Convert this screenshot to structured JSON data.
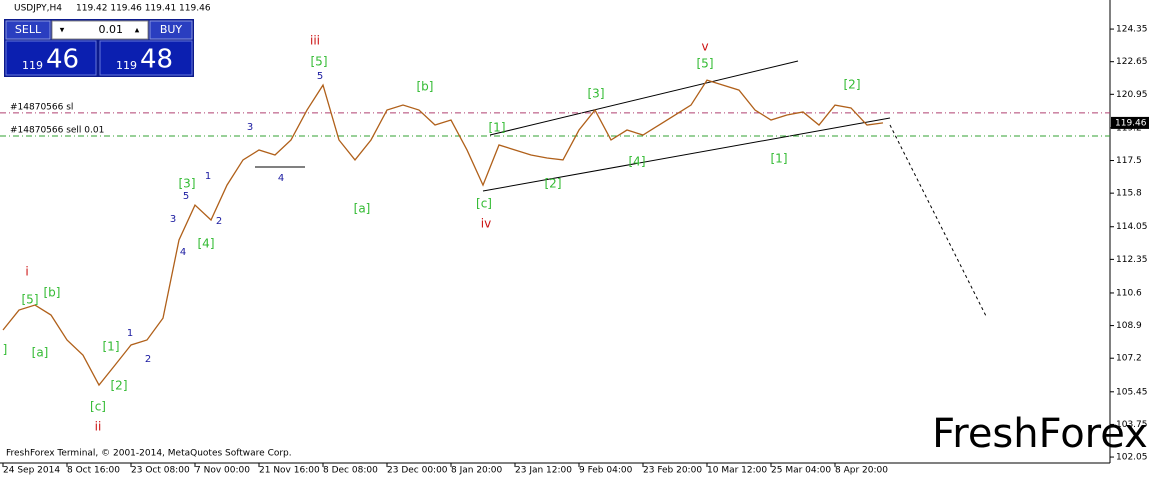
{
  "header": {
    "symbol": "USDJPY,H4",
    "ohlc": "119.42 119.46 119.41 119.46"
  },
  "trade_panel": {
    "sell": "SELL",
    "buy": "BUY",
    "lot": "0.01",
    "sell_small": "119",
    "sell_big": "46",
    "buy_small": "119",
    "buy_big": "48"
  },
  "copyright": "FreshForex Terminal, © 2001-2014, MetaQuotes Software Corp.",
  "watermark": "FreshForex",
  "chart_data": {
    "type": "line",
    "categories": [
      "24 Sep 2014",
      null,
      null,
      null,
      "8 Oct 16:00",
      null,
      null,
      null,
      "23 Oct 08:00",
      null,
      null,
      null,
      "7 Nov 00:00",
      null,
      null,
      null,
      "21 Nov 16:00",
      null,
      null,
      null,
      "8 Dec 08:00",
      null,
      null,
      null,
      "23 Dec 00:00",
      null,
      null,
      null,
      "8 Jan 20:00",
      null,
      null,
      null,
      "23 Jan 12:00",
      null,
      null,
      null,
      "9 Feb 04:00",
      null,
      null,
      null,
      "23 Feb 20:00",
      null,
      null,
      null,
      "10 Mar 12:00",
      null,
      null,
      null,
      "25 Mar 04:00",
      null,
      null,
      null,
      "8 Apr 20:00",
      null,
      null,
      null
    ],
    "series": [
      {
        "name": "USDJPY",
        "color": "#b0601a",
        "values": [
          108.67,
          109.71,
          109.97,
          109.45,
          108.15,
          107.36,
          105.8,
          106.84,
          107.89,
          108.15,
          109.29,
          113.36,
          115.18,
          114.4,
          116.22,
          117.53,
          118.05,
          117.79,
          118.57,
          120.13,
          121.43,
          118.57,
          117.53,
          118.57,
          120.13,
          120.39,
          120.13,
          119.35,
          119.61,
          118.05,
          116.22,
          118.31,
          118.05,
          117.79,
          117.63,
          117.53,
          119.09,
          120.13,
          118.57,
          119.09,
          118.83,
          119.35,
          119.87,
          120.39,
          121.69,
          121.43,
          121.17,
          120.13,
          119.61,
          119.87,
          120.03,
          119.35,
          120.39,
          120.24,
          119.35,
          119.46
        ]
      }
    ],
    "ylim": [
      101.74,
      125.76
    ],
    "yticks": [
      124.35,
      122.65,
      120.95,
      119.2,
      117.5,
      115.8,
      114.05,
      112.35,
      110.6,
      108.9,
      107.2,
      105.45,
      103.75,
      102.05
    ],
    "last_price": 119.46,
    "order_lines": [
      {
        "label": "#14870566 sl",
        "value": 119.98,
        "color": "#b04070"
      },
      {
        "label": "#14870566 sell 0.01",
        "value": 118.78,
        "color": "#30a030"
      }
    ],
    "annotations": [
      {
        "text": "[5]",
        "color": "#33bb33"
      },
      {
        "text": "[b]",
        "color": "#33bb33"
      },
      {
        "text": "[a]",
        "color": "#33bb33"
      },
      {
        "text": "]",
        "color": "#33bb33"
      },
      {
        "text": "[1]",
        "color": "#33bb33"
      },
      {
        "text": "[2]",
        "color": "#33bb33"
      },
      {
        "text": "[c]",
        "color": "#33bb33"
      },
      {
        "text": "[3]",
        "color": "#33bb33"
      },
      {
        "text": "[4]",
        "color": "#33bb33"
      },
      {
        "text": "[5]",
        "color": "#33bb33"
      },
      {
        "text": "[a]",
        "color": "#33bb33"
      },
      {
        "text": "[b]",
        "color": "#33bb33"
      },
      {
        "text": "[c]",
        "color": "#33bb33"
      },
      {
        "text": "[1]",
        "color": "#33bb33"
      },
      {
        "text": "[2]",
        "color": "#33bb33"
      },
      {
        "text": "[3]",
        "color": "#33bb33"
      },
      {
        "text": "[4]",
        "color": "#33bb33"
      },
      {
        "text": "[5]",
        "color": "#33bb33"
      },
      {
        "text": "[1]",
        "color": "#33bb33"
      },
      {
        "text": "[2]",
        "color": "#33bb33"
      },
      {
        "text": "i",
        "color": "#cc1111"
      },
      {
        "text": "ii",
        "color": "#cc1111"
      },
      {
        "text": "iii",
        "color": "#cc1111"
      },
      {
        "text": "iv",
        "color": "#cc1111"
      },
      {
        "text": "v",
        "color": "#cc1111"
      },
      {
        "text": "1",
        "color": "#1a1aa0"
      },
      {
        "text": "2",
        "color": "#1a1aa0"
      },
      {
        "text": "3",
        "color": "#1a1aa0"
      },
      {
        "text": "4",
        "color": "#1a1aa0"
      },
      {
        "text": "5",
        "color": "#1a1aa0"
      },
      {
        "text": "1",
        "color": "#1a1aa0"
      },
      {
        "text": "2",
        "color": "#1a1aa0"
      },
      {
        "text": "3",
        "color": "#1a1aa0"
      },
      {
        "text": "4",
        "color": "#1a1aa0"
      },
      {
        "text": "5",
        "color": "#1a1aa0"
      }
    ]
  }
}
